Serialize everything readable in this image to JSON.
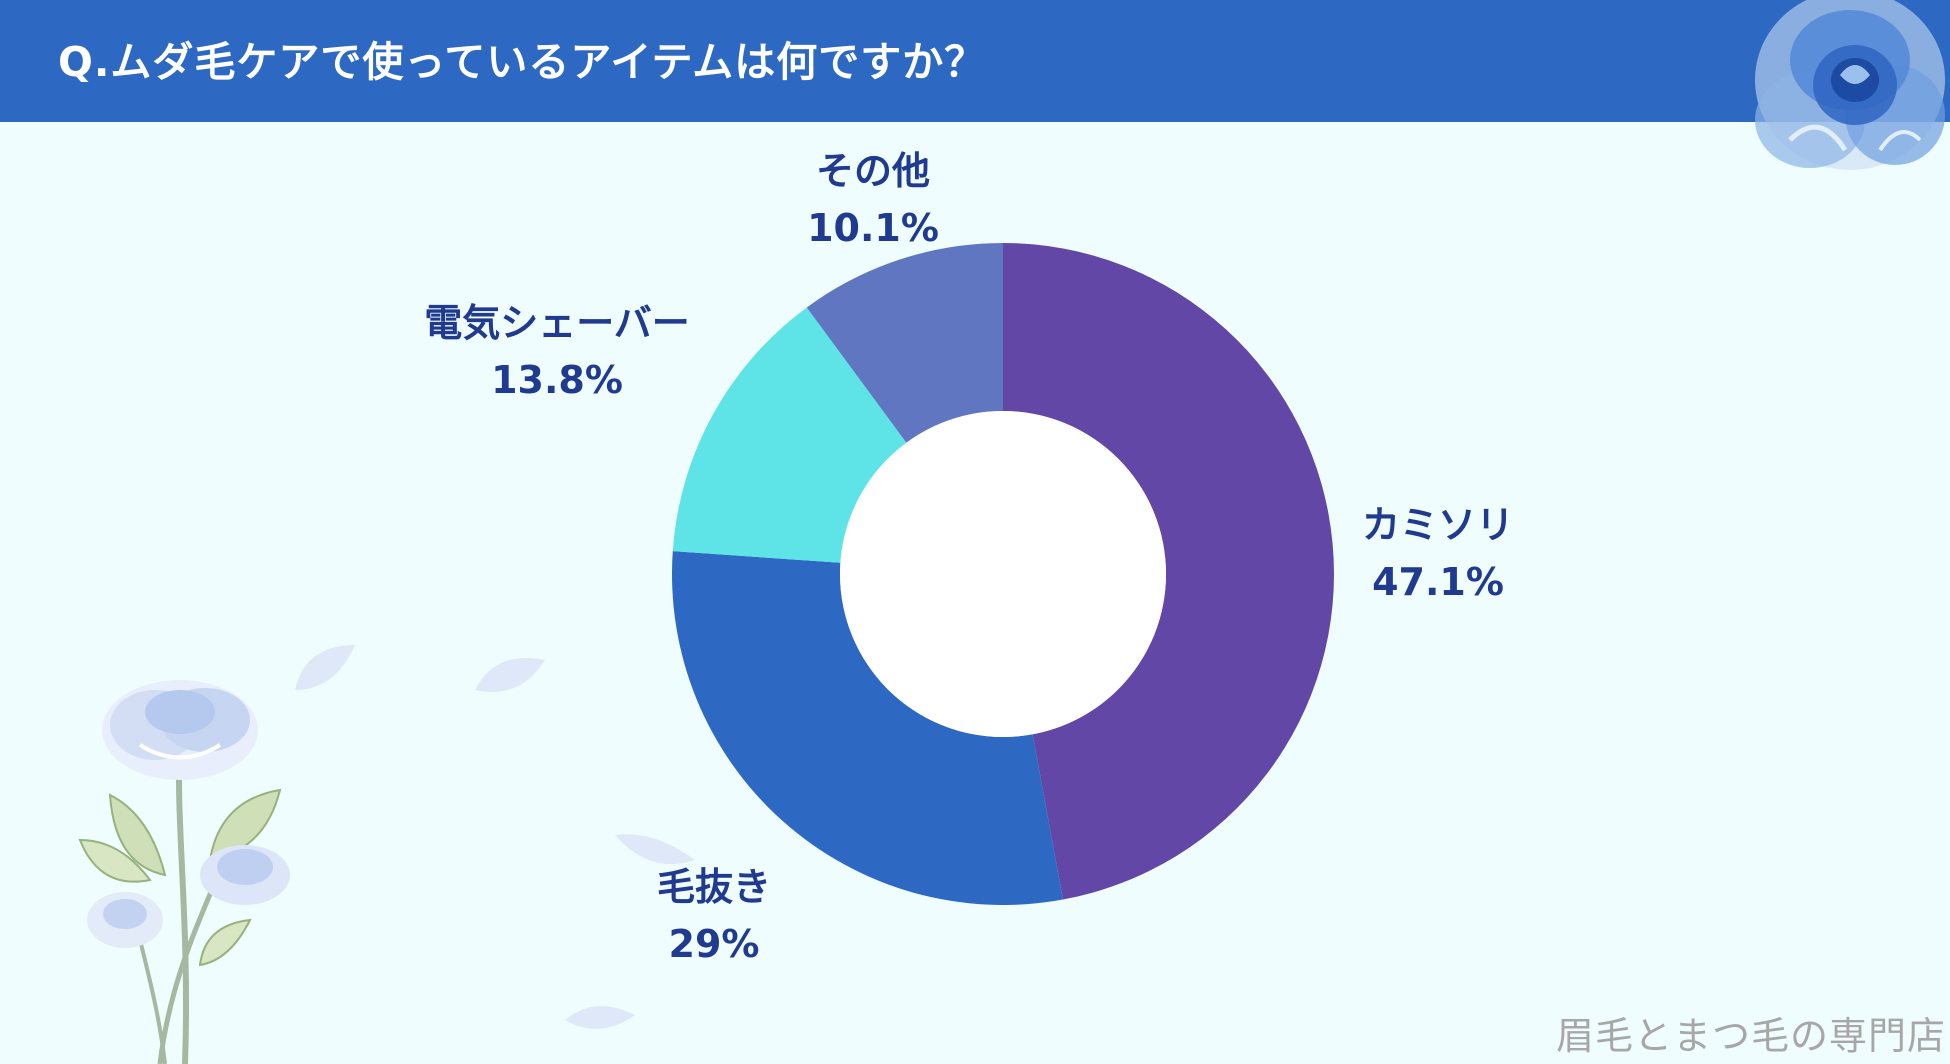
{
  "header": {
    "title": "Q.ムダ毛ケアで使っているアイテムは何ですか？"
  },
  "chart_data": {
    "type": "pie",
    "variant": "donut",
    "title": "Q.ムダ毛ケアで使っているアイテムは何ですか？",
    "slices": [
      {
        "name": "カミソリ",
        "value": 47.1,
        "label": "47.1%",
        "color": "#6247a6"
      },
      {
        "name": "毛抜き",
        "value": 29,
        "label": "29%",
        "color": "#2d69c3"
      },
      {
        "name": "電気シェーバー",
        "value": 13.8,
        "label": "13.8%",
        "color": "#5ee3e6"
      },
      {
        "name": "その他",
        "value": 10.1,
        "label": "10.1%",
        "color": "#6076c1"
      }
    ],
    "start_angle": "12 o'clock",
    "direction": "clockwise"
  },
  "colors": {
    "header": "#2d69c3",
    "background": "#effdfe",
    "label_text": "#1f3a8f",
    "watermark": "#a7a7a7"
  },
  "watermark": "眉毛とまつ毛の専門店"
}
